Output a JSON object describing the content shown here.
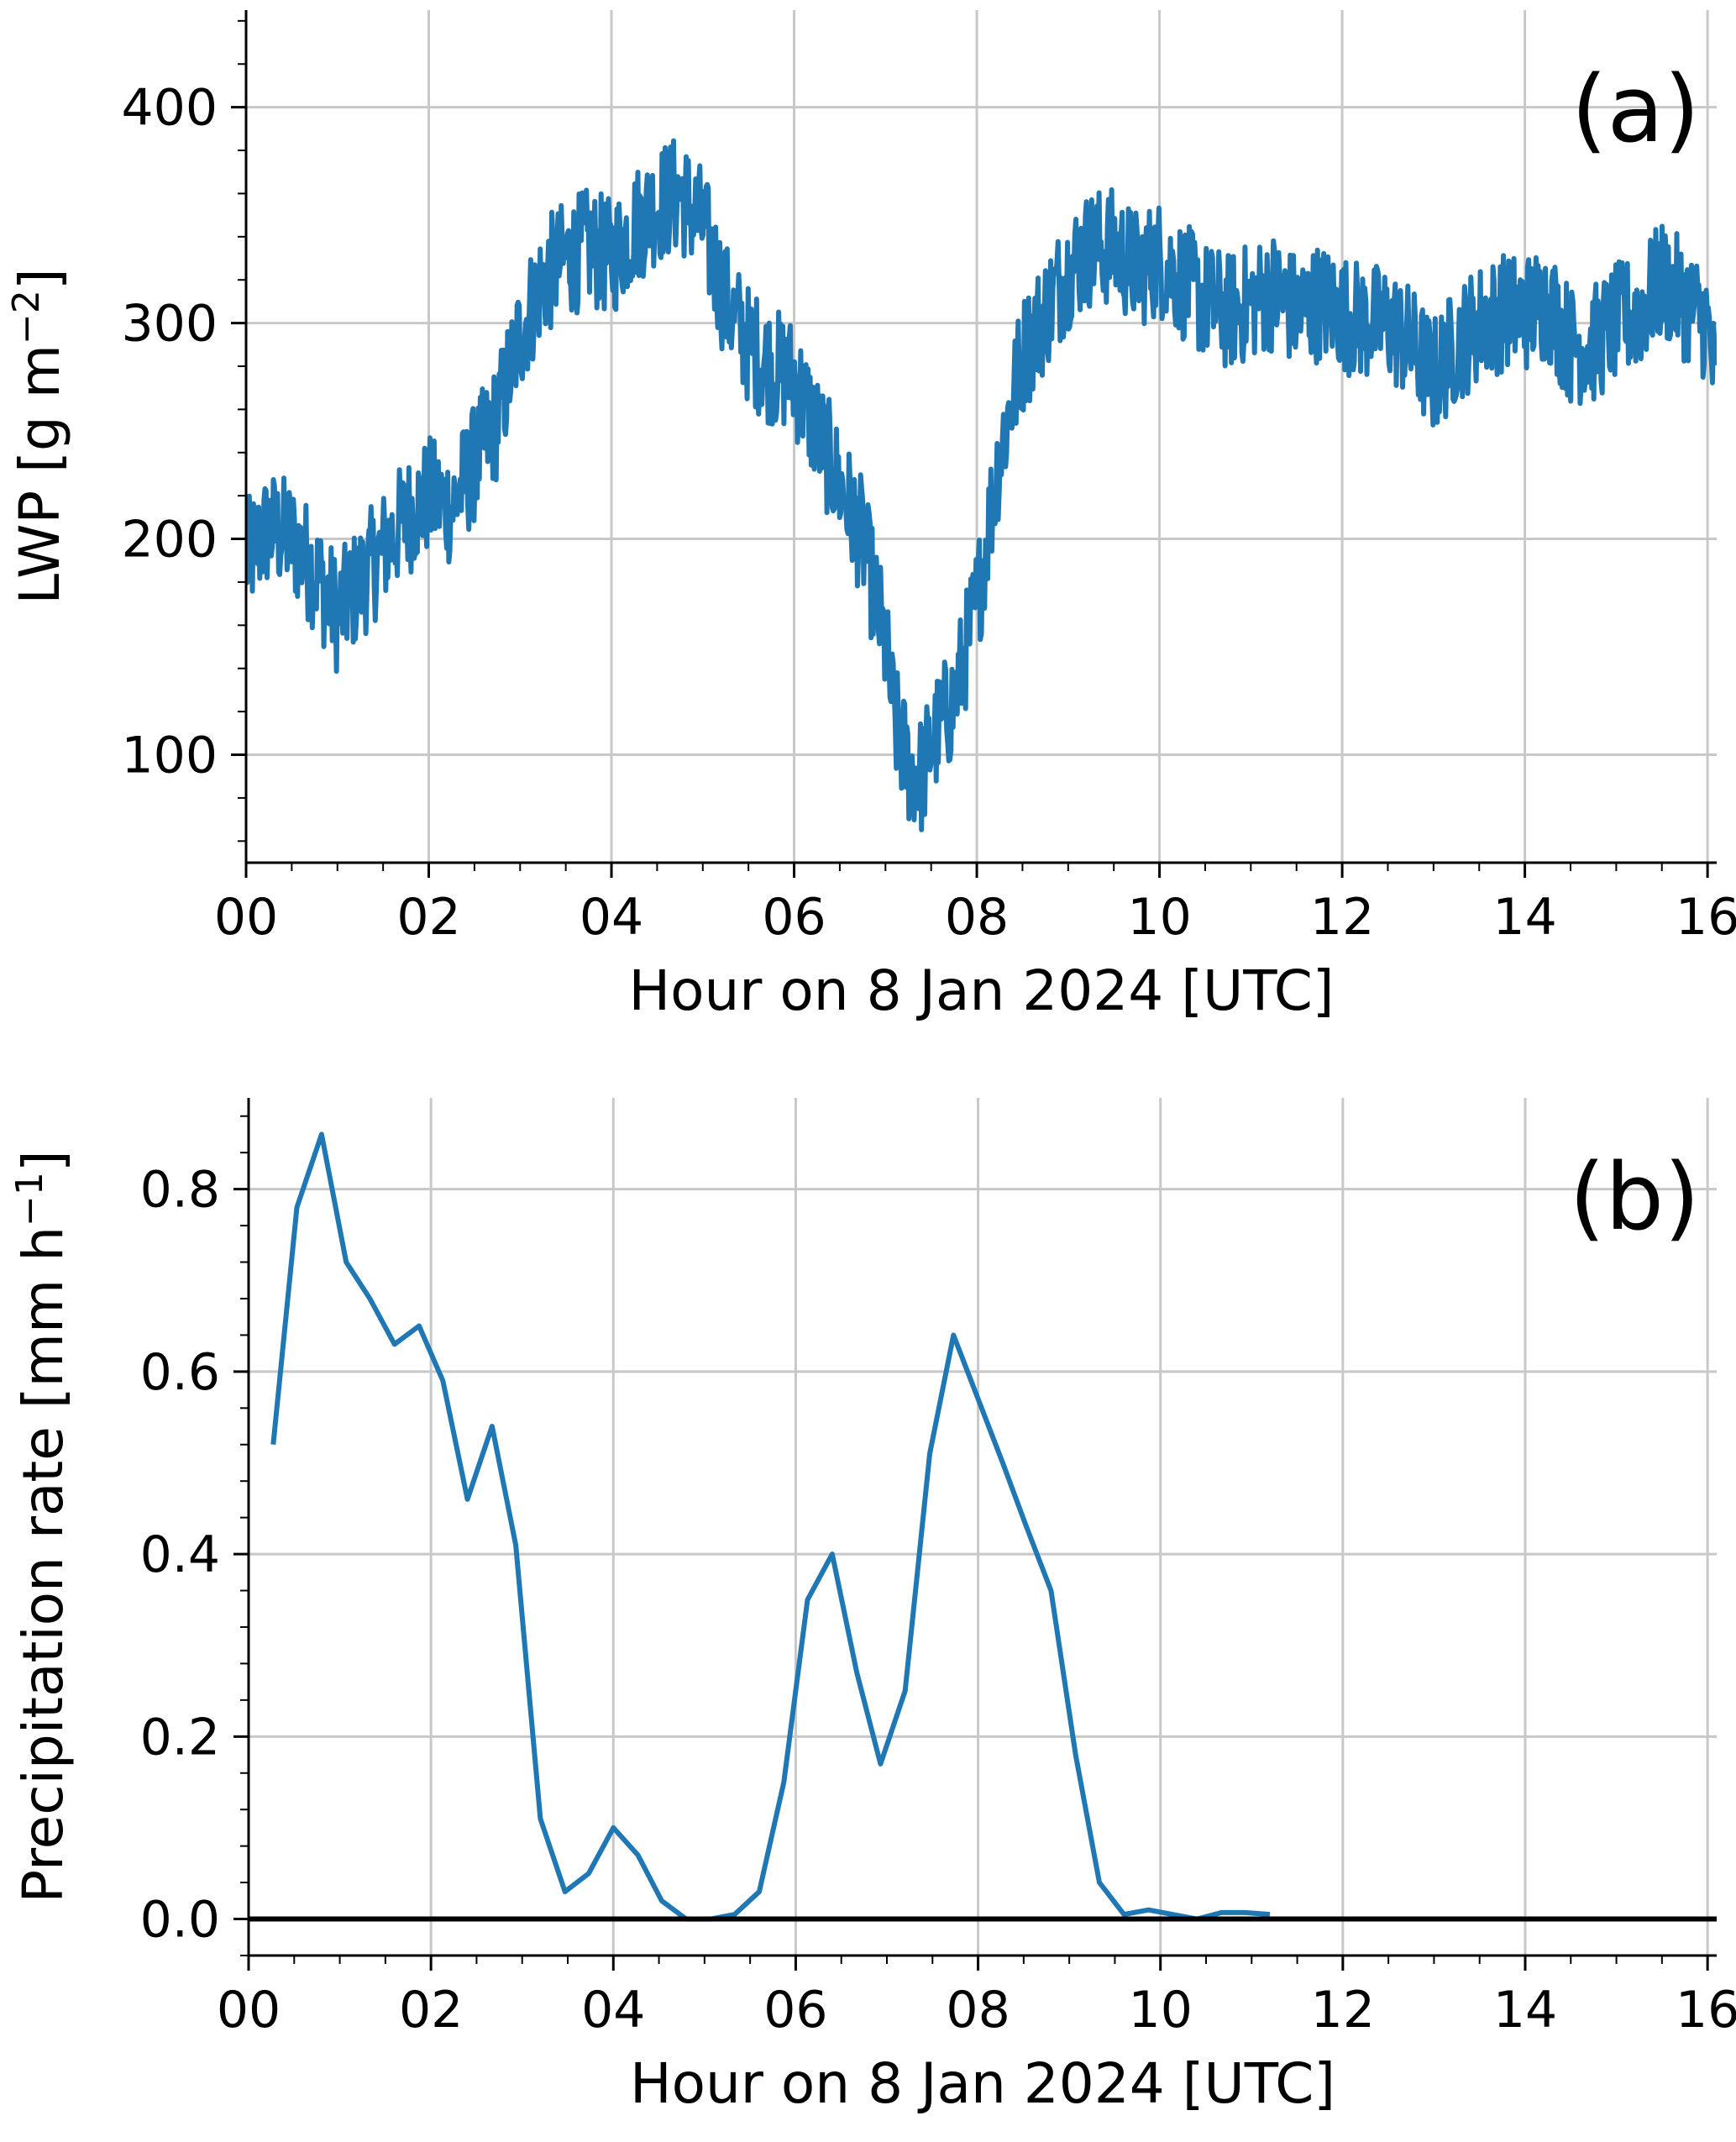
{
  "colors": {
    "line": "#1f77b4",
    "grid": "#c8c8c8",
    "axis": "#000000",
    "zero_line": "#000000"
  },
  "chart_data": [
    {
      "type": "line",
      "panel_label": "(a)",
      "xlabel": "Hour on 8 Jan 2024 [UTC]",
      "ylabel_main": "LWP [g m",
      "ylabel_sup": "−2",
      "ylabel_tail": "]",
      "xlim": [
        0,
        16.1
      ],
      "ylim": [
        50,
        445
      ],
      "xticks": [
        0,
        2,
        4,
        6,
        8,
        10,
        12,
        14,
        16
      ],
      "xtick_labels": [
        "00",
        "02",
        "04",
        "06",
        "08",
        "10",
        "12",
        "14",
        "16"
      ],
      "yticks": [
        100,
        200,
        300,
        400
      ],
      "ytick_labels": [
        "100",
        "200",
        "300",
        "400"
      ],
      "grid": true,
      "series": [
        {
          "x": [
            0.0,
            0.25,
            0.5,
            0.75,
            1.0,
            1.25,
            1.5,
            1.75,
            2.0,
            2.25,
            2.5,
            2.75,
            3.0,
            3.25,
            3.5,
            3.75,
            4.0,
            4.25,
            4.5,
            4.75,
            5.0,
            5.25,
            5.5,
            5.75,
            6.0,
            6.25,
            6.5,
            6.75,
            7.0,
            7.1,
            7.25,
            7.4,
            7.5,
            7.75,
            8.0,
            8.25,
            8.5,
            8.75,
            9.0,
            9.25,
            9.5,
            9.75,
            10.0,
            10.25,
            10.5,
            10.75,
            11.0,
            11.25,
            11.5,
            11.75,
            12.0,
            12.25,
            12.5,
            12.75,
            13.0,
            13.25,
            13.5,
            13.75,
            14.0,
            14.25,
            14.5,
            14.75,
            15.0,
            15.25,
            15.5,
            15.75,
            16.0,
            16.1
          ],
          "values": [
            190,
            205,
            200,
            185,
            165,
            180,
            195,
            210,
            220,
            215,
            235,
            255,
            295,
            320,
            330,
            335,
            330,
            345,
            355,
            360,
            345,
            310,
            290,
            280,
            275,
            250,
            225,
            200,
            150,
            115,
            95,
            90,
            105,
            125,
            170,
            240,
            285,
            305,
            325,
            335,
            335,
            325,
            330,
            320,
            310,
            305,
            310,
            315,
            305,
            310,
            305,
            300,
            300,
            290,
            275,
            290,
            300,
            305,
            305,
            310,
            290,
            290,
            300,
            305,
            320,
            310,
            300,
            265
          ],
          "noise": 28
        }
      ]
    },
    {
      "type": "line",
      "panel_label": "(b)",
      "xlabel": "Hour on 8 Jan 2024 [UTC]",
      "ylabel_main": "Precipitation rate [mm h",
      "ylabel_sup": "−1",
      "ylabel_tail": "]",
      "xlim": [
        0,
        16.1
      ],
      "ylim": [
        -0.04,
        0.9
      ],
      "xticks": [
        0,
        2,
        4,
        6,
        8,
        10,
        12,
        14,
        16
      ],
      "xtick_labels": [
        "00",
        "02",
        "04",
        "06",
        "08",
        "10",
        "12",
        "14",
        "16"
      ],
      "yticks": [
        0.0,
        0.2,
        0.4,
        0.6,
        0.8
      ],
      "ytick_labels": [
        "0.0",
        "0.2",
        "0.4",
        "0.6",
        "0.8"
      ],
      "grid": true,
      "zero_line": true,
      "series": [
        {
          "x": [
            0.27,
            0.53,
            0.8,
            1.07,
            1.33,
            1.6,
            1.87,
            2.13,
            2.4,
            2.67,
            2.93,
            3.2,
            3.47,
            3.73,
            4.0,
            4.27,
            4.53,
            4.8,
            5.07,
            5.33,
            5.6,
            5.87,
            6.13,
            6.4,
            6.67,
            6.93,
            7.2,
            7.47,
            7.73,
            8.0,
            8.27,
            8.53,
            8.8,
            9.07,
            9.33,
            9.6,
            9.87,
            10.13,
            10.4,
            10.67,
            10.93,
            11.2
          ],
          "values": [
            0.52,
            0.78,
            0.86,
            0.72,
            0.68,
            0.63,
            0.65,
            0.59,
            0.46,
            0.54,
            0.41,
            0.11,
            0.03,
            0.05,
            0.1,
            0.07,
            0.02,
            0.0,
            0.0,
            0.005,
            0.03,
            0.15,
            0.35,
            0.4,
            0.27,
            0.17,
            0.25,
            0.51,
            0.64,
            0.57,
            0.5,
            0.43,
            0.36,
            0.18,
            0.04,
            0.005,
            0.01,
            0.005,
            0.0,
            0.007,
            0.007,
            0.005
          ]
        }
      ]
    }
  ]
}
